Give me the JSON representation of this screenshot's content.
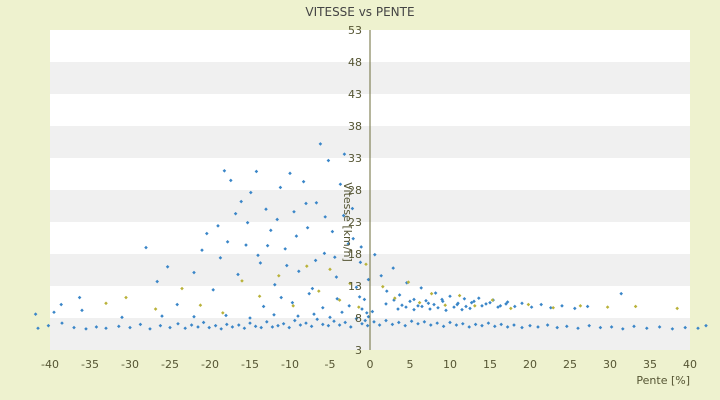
{
  "chart_data": {
    "type": "scatter",
    "title": "VITESSE vs PENTE",
    "xlabel": "Pente [%]",
    "ylabel": "Vitesse [km/h]",
    "xlim": [
      -40,
      40
    ],
    "ylim": [
      3,
      53
    ],
    "x_ticks": [
      -40,
      -35,
      -30,
      -25,
      -20,
      -15,
      -10,
      -5,
      0,
      5,
      10,
      15,
      20,
      25,
      30,
      35,
      40
    ],
    "y_ticks": [
      3,
      8,
      13,
      18,
      23,
      28,
      33,
      38,
      43,
      48,
      53
    ],
    "grid": "alternating horizontal bands",
    "legend": "none",
    "colors": {
      "background": "#eef2cf",
      "band_light": "#ffffff",
      "band_dark": "#f0f0f0",
      "axis_text": "#555533",
      "title_text": "#444444",
      "primary_points": "#3a86c8",
      "secondary_points": "#b9b23a"
    },
    "series": [
      {
        "color": "#3a86c8",
        "points": [
          [
            -41.5,
            6.4
          ],
          [
            -40.2,
            6.8
          ],
          [
            -38.5,
            7.2
          ],
          [
            -37.0,
            6.5
          ],
          [
            -35.5,
            6.3
          ],
          [
            -34.2,
            6.6
          ],
          [
            -33.0,
            6.4
          ],
          [
            -31.4,
            6.7
          ],
          [
            -30.0,
            6.5
          ],
          [
            -28.7,
            7.0
          ],
          [
            -27.5,
            6.3
          ],
          [
            -26.2,
            6.8
          ],
          [
            -25.0,
            6.5
          ],
          [
            -24.0,
            7.1
          ],
          [
            -23.1,
            6.4
          ],
          [
            -22.3,
            6.9
          ],
          [
            -21.5,
            6.6
          ],
          [
            -20.8,
            7.3
          ],
          [
            -20.1,
            6.5
          ],
          [
            -19.3,
            6.8
          ],
          [
            -18.6,
            6.3
          ],
          [
            -17.9,
            7.0
          ],
          [
            -17.2,
            6.6
          ],
          [
            -16.4,
            6.9
          ],
          [
            -15.7,
            6.4
          ],
          [
            -15.0,
            7.2
          ],
          [
            -14.3,
            6.7
          ],
          [
            -13.6,
            6.5
          ],
          [
            -12.9,
            7.4
          ],
          [
            -12.2,
            6.6
          ],
          [
            -11.5,
            6.8
          ],
          [
            -10.8,
            7.1
          ],
          [
            -10.1,
            6.5
          ],
          [
            -9.4,
            7.6
          ],
          [
            -8.7,
            6.9
          ],
          [
            -8.0,
            7.2
          ],
          [
            -7.3,
            6.7
          ],
          [
            -6.6,
            7.8
          ],
          [
            -5.9,
            7.0
          ],
          [
            -5.2,
            6.8
          ],
          [
            -4.5,
            7.5
          ],
          [
            -3.8,
            6.9
          ],
          [
            -3.1,
            7.3
          ],
          [
            -2.4,
            6.6
          ],
          [
            -1.7,
            7.9
          ],
          [
            -1.0,
            7.1
          ],
          [
            -0.3,
            6.8
          ],
          [
            0.5,
            7.4
          ],
          [
            1.2,
            6.9
          ],
          [
            2.0,
            7.6
          ],
          [
            2.8,
            7.0
          ],
          [
            3.6,
            7.3
          ],
          [
            4.4,
            6.8
          ],
          [
            5.2,
            7.5
          ],
          [
            6.0,
            7.1
          ],
          [
            6.8,
            7.4
          ],
          [
            7.6,
            6.9
          ],
          [
            8.4,
            7.2
          ],
          [
            9.2,
            6.7
          ],
          [
            10.0,
            7.3
          ],
          [
            10.8,
            6.9
          ],
          [
            11.6,
            7.1
          ],
          [
            12.4,
            6.6
          ],
          [
            13.2,
            7.0
          ],
          [
            14.0,
            6.8
          ],
          [
            14.8,
            7.2
          ],
          [
            15.6,
            6.7
          ],
          [
            16.4,
            7.0
          ],
          [
            17.2,
            6.6
          ],
          [
            18.0,
            6.9
          ],
          [
            19.0,
            6.5
          ],
          [
            20.0,
            6.8
          ],
          [
            21.0,
            6.6
          ],
          [
            22.2,
            6.9
          ],
          [
            23.4,
            6.5
          ],
          [
            24.6,
            6.7
          ],
          [
            26.0,
            6.4
          ],
          [
            27.4,
            6.8
          ],
          [
            28.8,
            6.5
          ],
          [
            30.2,
            6.6
          ],
          [
            31.6,
            6.3
          ],
          [
            33.0,
            6.7
          ],
          [
            34.6,
            6.4
          ],
          [
            36.2,
            6.6
          ],
          [
            37.8,
            6.3
          ],
          [
            39.4,
            6.5
          ],
          [
            41.0,
            6.4
          ],
          [
            42.0,
            6.8
          ],
          [
            -28.0,
            19.0
          ],
          [
            -26.6,
            13.7
          ],
          [
            -25.3,
            16.0
          ],
          [
            -24.1,
            10.1
          ],
          [
            -22.0,
            15.1
          ],
          [
            -21.0,
            18.6
          ],
          [
            -20.4,
            21.2
          ],
          [
            -19.6,
            12.4
          ],
          [
            -18.7,
            17.4
          ],
          [
            -18.2,
            31.0
          ],
          [
            -17.4,
            29.5
          ],
          [
            -16.8,
            24.3
          ],
          [
            -16.1,
            26.2
          ],
          [
            -15.5,
            19.4
          ],
          [
            -14.9,
            27.6
          ],
          [
            -14.2,
            30.9
          ],
          [
            -13.7,
            16.6
          ],
          [
            -13.0,
            25.0
          ],
          [
            -12.4,
            21.7
          ],
          [
            -11.9,
            13.2
          ],
          [
            -11.2,
            28.4
          ],
          [
            -10.6,
            18.8
          ],
          [
            -10.0,
            30.6
          ],
          [
            -9.5,
            24.6
          ],
          [
            -8.9,
            15.3
          ],
          [
            -8.3,
            29.3
          ],
          [
            -7.8,
            22.1
          ],
          [
            -7.2,
            12.6
          ],
          [
            -6.7,
            26.0
          ],
          [
            -6.2,
            35.2
          ],
          [
            -5.7,
            18.1
          ],
          [
            -5.2,
            32.6
          ],
          [
            -4.7,
            21.5
          ],
          [
            -4.2,
            14.4
          ],
          [
            -3.7,
            28.9
          ],
          [
            -3.2,
            33.6
          ],
          [
            -2.7,
            19.6
          ],
          [
            -2.2,
            25.1
          ],
          [
            -1.7,
            12.8
          ],
          [
            -1.2,
            16.7
          ],
          [
            -0.7,
            10.9
          ],
          [
            -0.2,
            14.0
          ],
          [
            -19.0,
            22.4
          ],
          [
            -17.8,
            19.9
          ],
          [
            -16.5,
            14.8
          ],
          [
            -15.3,
            22.9
          ],
          [
            -14.0,
            17.8
          ],
          [
            -12.8,
            19.3
          ],
          [
            -11.6,
            23.4
          ],
          [
            -10.4,
            16.2
          ],
          [
            -9.2,
            20.8
          ],
          [
            -8.0,
            25.9
          ],
          [
            -6.8,
            17.0
          ],
          [
            -5.6,
            23.8
          ],
          [
            -4.4,
            17.5
          ],
          [
            -3.3,
            24.0
          ],
          [
            -2.1,
            20.4
          ],
          [
            -1.1,
            19.1
          ],
          [
            -13.3,
            9.8
          ],
          [
            -11.1,
            11.2
          ],
          [
            -9.7,
            10.4
          ],
          [
            -7.6,
            11.8
          ],
          [
            -5.9,
            9.6
          ],
          [
            -4.1,
            11.0
          ],
          [
            -2.6,
            9.9
          ],
          [
            -1.3,
            11.3
          ],
          [
            0.6,
            17.9
          ],
          [
            1.4,
            14.6
          ],
          [
            2.1,
            12.2
          ],
          [
            2.9,
            15.8
          ],
          [
            3.7,
            11.6
          ],
          [
            4.6,
            13.5
          ],
          [
            5.5,
            10.9
          ],
          [
            6.4,
            12.7
          ],
          [
            7.3,
            10.3
          ],
          [
            8.2,
            11.9
          ],
          [
            9.1,
            10.6
          ],
          [
            10.0,
            11.4
          ],
          [
            10.9,
            10.1
          ],
          [
            11.8,
            11.0
          ],
          [
            12.7,
            10.4
          ],
          [
            13.6,
            11.1
          ],
          [
            14.5,
            10.2
          ],
          [
            15.4,
            10.8
          ],
          [
            16.3,
            9.9
          ],
          [
            17.2,
            10.5
          ],
          [
            18.1,
            9.8
          ],
          [
            19.0,
            10.3
          ],
          [
            20.2,
            9.7
          ],
          [
            21.4,
            10.1
          ],
          [
            22.6,
            9.6
          ],
          [
            24.0,
            9.9
          ],
          [
            25.6,
            9.5
          ],
          [
            27.2,
            9.8
          ],
          [
            31.4,
            11.8
          ],
          [
            2.0,
            10.2
          ],
          [
            3.0,
            10.8
          ],
          [
            4.0,
            10.0
          ],
          [
            5.0,
            10.6
          ],
          [
            6.0,
            9.9
          ],
          [
            7.0,
            10.7
          ],
          [
            8.0,
            10.1
          ],
          [
            9.0,
            10.9
          ],
          [
            11.0,
            10.3
          ],
          [
            12.0,
            9.8
          ],
          [
            13.0,
            10.6
          ],
          [
            14.0,
            9.9
          ],
          [
            15.0,
            10.4
          ],
          [
            16.0,
            9.7
          ],
          [
            17.0,
            10.2
          ],
          [
            3.5,
            9.4
          ],
          [
            4.5,
            9.7
          ],
          [
            5.5,
            9.3
          ],
          [
            6.5,
            9.8
          ],
          [
            7.5,
            9.4
          ],
          [
            8.5,
            9.6
          ],
          [
            9.5,
            9.2
          ],
          [
            10.5,
            9.7
          ],
          [
            11.5,
            9.3
          ],
          [
            12.5,
            9.5
          ],
          [
            -0.4,
            8.8
          ],
          [
            -1.0,
            9.4
          ],
          [
            -0.6,
            7.6
          ],
          [
            -0.2,
            8.2
          ],
          [
            0.3,
            9.0
          ],
          [
            -7.0,
            8.6
          ],
          [
            -5.0,
            8.1
          ],
          [
            -3.5,
            8.9
          ],
          [
            -9.0,
            8.3
          ],
          [
            -12.0,
            8.5
          ],
          [
            -15.0,
            8.0
          ],
          [
            -18.0,
            8.4
          ],
          [
            -22.0,
            8.2
          ],
          [
            -26.0,
            8.3
          ],
          [
            -31.0,
            8.1
          ],
          [
            -36.0,
            9.2
          ],
          [
            -39.5,
            8.9
          ],
          [
            -41.8,
            8.6
          ],
          [
            -38.6,
            10.1
          ],
          [
            -36.3,
            11.2
          ]
        ]
      },
      {
        "color": "#b9b23a",
        "points": [
          [
            -33.0,
            10.3
          ],
          [
            -30.5,
            11.2
          ],
          [
            -26.8,
            9.4
          ],
          [
            -23.5,
            12.6
          ],
          [
            -21.2,
            10.0
          ],
          [
            -18.4,
            8.8
          ],
          [
            -16.0,
            13.8
          ],
          [
            -13.8,
            11.4
          ],
          [
            -11.4,
            14.6
          ],
          [
            -9.6,
            9.9
          ],
          [
            -7.9,
            16.1
          ],
          [
            -6.4,
            12.2
          ],
          [
            -5.0,
            15.6
          ],
          [
            -3.8,
            10.8
          ],
          [
            -2.5,
            13.4
          ],
          [
            -1.4,
            9.7
          ],
          [
            -0.5,
            16.4
          ],
          [
            1.6,
            12.9
          ],
          [
            3.1,
            11.1
          ],
          [
            4.8,
            13.6
          ],
          [
            6.2,
            10.4
          ],
          [
            7.7,
            11.8
          ],
          [
            9.4,
            10.0
          ],
          [
            11.2,
            11.5
          ],
          [
            13.1,
            9.9
          ],
          [
            15.3,
            10.8
          ],
          [
            17.6,
            9.5
          ],
          [
            19.8,
            10.1
          ],
          [
            22.9,
            9.6
          ],
          [
            26.3,
            9.9
          ],
          [
            29.7,
            9.7
          ],
          [
            33.2,
            9.8
          ],
          [
            38.4,
            9.5
          ]
        ]
      }
    ]
  }
}
